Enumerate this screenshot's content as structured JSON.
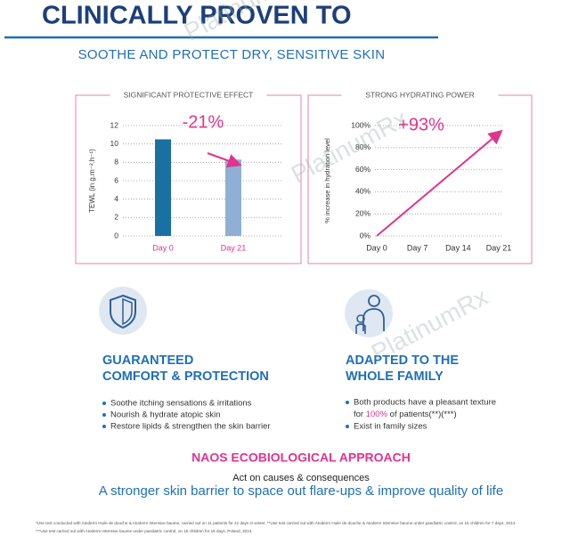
{
  "header": {
    "title": "CLINICALLY PROVEN TO",
    "subtitle": "SOOTHE AND PROTECT DRY, SENSITIVE SKIN"
  },
  "watermark": "PlatinumRx",
  "chart_data": [
    {
      "type": "bar",
      "title": "SIGNIFICANT PROTECTIVE EFFECT",
      "y_label": "TEWL (in g.m⁻².h⁻¹)",
      "categories": [
        "Day 0",
        "Day 21"
      ],
      "values": [
        10.5,
        8.3
      ],
      "colors": [
        "#1a6fa3",
        "#8fb0d4"
      ],
      "annotation": "-21%",
      "ylim": [
        0,
        12
      ],
      "yticks": [
        0,
        2,
        4,
        6,
        8,
        10,
        12
      ],
      "grid": true
    },
    {
      "type": "line",
      "title": "STRONG HYDRATING POWER",
      "y_label": "% increase in hydration level",
      "x": [
        0,
        21
      ],
      "values": [
        0,
        93
      ],
      "color": "#e0348e",
      "annotation": "+93%",
      "xlim": [
        0,
        21
      ],
      "xticks": [
        {
          "value": 0,
          "label": "Day 0"
        },
        {
          "value": 7,
          "label": "Day 7"
        },
        {
          "value": 14,
          "label": "Day 14"
        },
        {
          "value": 21,
          "label": "Day 21"
        }
      ],
      "ylim": [
        0,
        100
      ],
      "yticks": [
        {
          "value": 0,
          "label": "0%"
        },
        {
          "value": 20,
          "label": "20%"
        },
        {
          "value": 40,
          "label": "40%"
        },
        {
          "value": 60,
          "label": "60%"
        },
        {
          "value": 80,
          "label": "80%"
        },
        {
          "value": 100,
          "label": "100%"
        }
      ],
      "grid": true
    }
  ],
  "features": [
    {
      "heading": [
        "GUARANTEED",
        "COMFORT & PROTECTION"
      ],
      "bullets": [
        "Soothe itching sensations & irritations",
        "Nourish & hydrate atopic skin",
        "Restore lipids & strengthen the skin barrier"
      ]
    },
    {
      "heading": [
        "ADAPTED TO THE",
        "WHOLE FAMILY"
      ],
      "bullets": [
        "Both products have a pleasant texture",
        "Exist in family sizes"
      ],
      "bullet_2": {
        "before": "for ",
        "highlight": "100%",
        "after": " of patients(**)(***)"
      }
    }
  ],
  "approach": {
    "title": "NAOS ECOBIOLOGICAL APPROACH",
    "subtitle": "Act on causes & consequences",
    "tagline": "A stronger skin barrier to space out flare-ups & improve quality of life"
  },
  "footnotes": [
    "*Use test conducted with Atoderm Huile de douche & Atoderm Intensive baume, carried out on 11 patients for 21 days in winter. **Use test carried out with Atoderm Huile de douche & Atoderm Intensive baume under paediatric control, on 15 children for 7 days, 2014.",
    "***Use test carried out with Atoderm Intensive baume under paediatric control, on 15 children for 15 days, Poland, 2013."
  ]
}
